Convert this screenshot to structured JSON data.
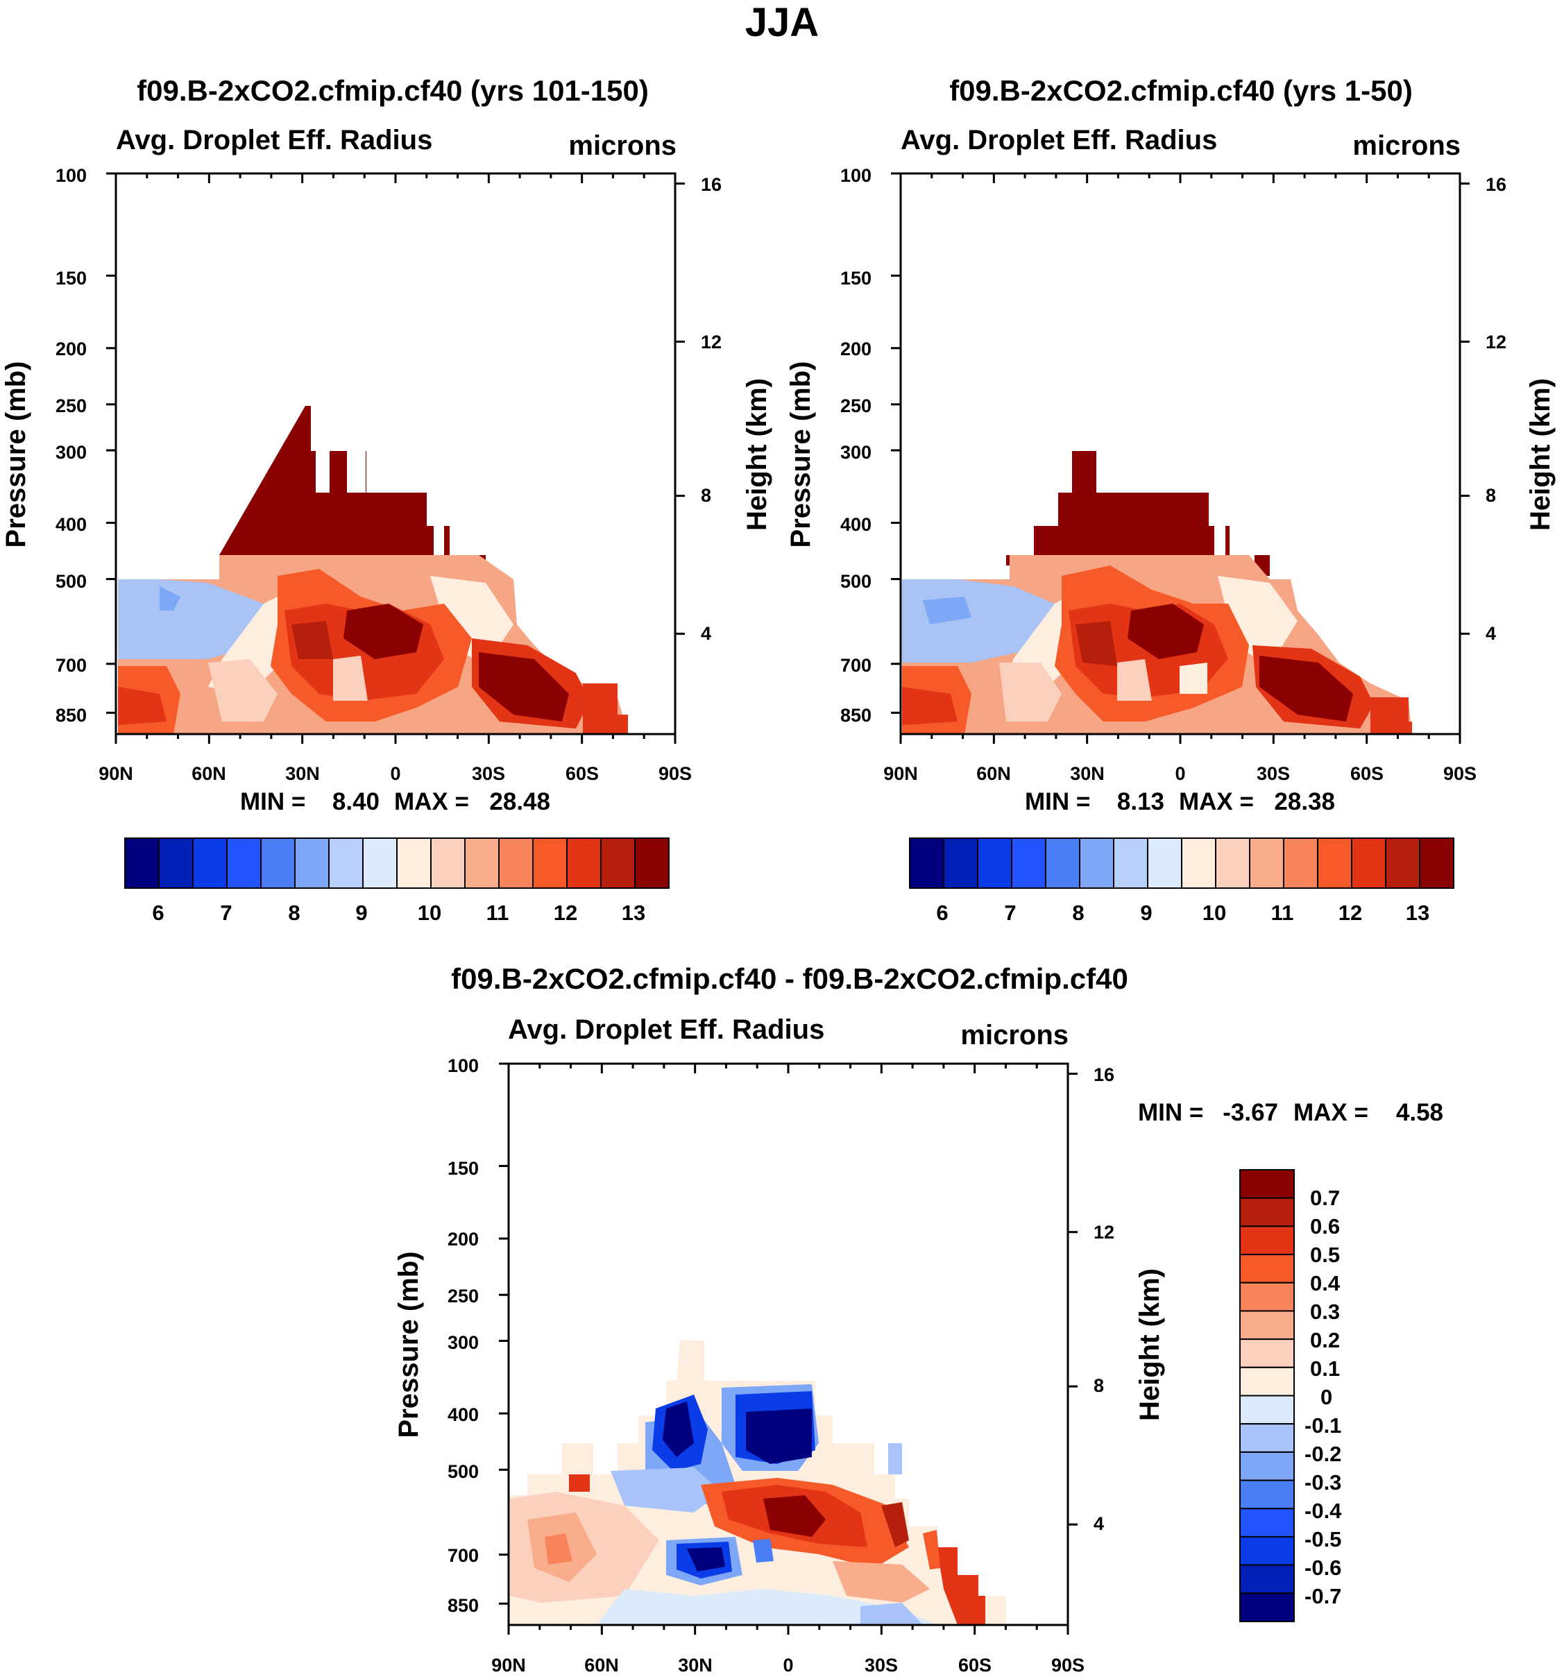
{
  "figure_title": "JJA",
  "colors": {
    "dark_red": "#8b0000",
    "scale15": [
      "#00007f",
      "#0020b8",
      "#0a3ce8",
      "#2255ff",
      "#4a7ef7",
      "#7ea7f7",
      "#b7cffa",
      "#dbebfb",
      "#fdeee0",
      "#fbd1bd",
      "#f9ad8c",
      "#f8845c",
      "#f65a29",
      "#e43416",
      "#b71f0d",
      "#8b0000"
    ],
    "diff_scale": [
      "#00007f",
      "#0020b8",
      "#0a3ce8",
      "#2255ff",
      "#4a7ef7",
      "#7ea7f7",
      "#a8c4fb",
      "#dbebfb",
      "#fdeee0",
      "#fbd1bd",
      "#f9ad8c",
      "#f8845c",
      "#f65a29",
      "#e43416",
      "#b71f0d",
      "#8b0000"
    ]
  },
  "chart_data": [
    {
      "type": "heatmap",
      "title": "f09.B-2xCO2.cfmip.cf40 (yrs 101-150)",
      "subtitle_left": "Avg. Droplet Eff. Radius",
      "subtitle_right": "microns",
      "ylabel": "Pressure (mb)",
      "ylabel_right": "Height (km)",
      "x_ticks": [
        "90N",
        "60N",
        "30N",
        "0",
        "30S",
        "60S",
        "90S"
      ],
      "y_ticks": [
        "100",
        "150",
        "200",
        "250",
        "300",
        "400",
        "500",
        "700",
        "850"
      ],
      "y_right_ticks": [
        "16",
        "12",
        "8",
        "4"
      ],
      "min_label": "MIN =",
      "min_value": "8.40",
      "max_label": "MAX =",
      "max_value": "28.48",
      "colorbar_labels": [
        "6",
        "7",
        "8",
        "9",
        "10",
        "11",
        "12",
        "13"
      ]
    },
    {
      "type": "heatmap",
      "title": "f09.B-2xCO2.cfmip.cf40 (yrs 1-50)",
      "subtitle_left": "Avg. Droplet Eff. Radius",
      "subtitle_right": "microns",
      "ylabel": "Pressure (mb)",
      "ylabel_right": "Height (km)",
      "x_ticks": [
        "90N",
        "60N",
        "30N",
        "0",
        "30S",
        "60S",
        "90S"
      ],
      "y_ticks": [
        "100",
        "150",
        "200",
        "250",
        "300",
        "400",
        "500",
        "700",
        "850"
      ],
      "y_right_ticks": [
        "16",
        "12",
        "8",
        "4"
      ],
      "min_label": "MIN =",
      "min_value": "8.13",
      "max_label": "MAX =",
      "max_value": "28.38",
      "colorbar_labels": [
        "6",
        "7",
        "8",
        "9",
        "10",
        "11",
        "12",
        "13"
      ]
    },
    {
      "type": "heatmap",
      "title": "f09.B-2xCO2.cfmip.cf40 - f09.B-2xCO2.cfmip.cf40",
      "subtitle_left": "Avg. Droplet Eff. Radius",
      "subtitle_right": "microns",
      "ylabel": "Pressure (mb)",
      "ylabel_right": "Height (km)",
      "x_ticks": [
        "90N",
        "60N",
        "30N",
        "0",
        "30S",
        "60S",
        "90S"
      ],
      "y_ticks": [
        "100",
        "150",
        "200",
        "250",
        "300",
        "400",
        "500",
        "700",
        "850"
      ],
      "y_right_ticks": [
        "16",
        "12",
        "8",
        "4"
      ],
      "min_label": "MIN =",
      "min_value": "-3.67",
      "max_label": "MAX =",
      "max_value": "4.58",
      "colorbar_labels": [
        "0.7",
        "0.6",
        "0.5",
        "0.4",
        "0.3",
        "0.2",
        "0.1",
        "0",
        "-0.1",
        "-0.2",
        "-0.3",
        "-0.4",
        "-0.5",
        "-0.6",
        "-0.7"
      ]
    }
  ]
}
